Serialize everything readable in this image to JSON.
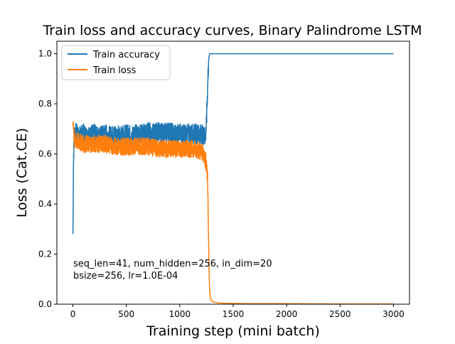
{
  "chart_data": {
    "type": "line",
    "title": "Train loss and accuracy curves, Binary Palindrome LSTM",
    "xlabel": "Training step (mini batch)",
    "ylabel": "Loss (Cat.CE)",
    "xlim": [
      -150,
      3150
    ],
    "ylim": [
      0,
      1.05
    ],
    "xticks": [
      "0",
      "500",
      "1000",
      "1500",
      "2000",
      "2500",
      "3000"
    ],
    "yticks": [
      "0.0",
      "0.2",
      "0.4",
      "0.6",
      "0.8",
      "1.0"
    ],
    "grid": false,
    "legend_position": "top-left",
    "annotation": [
      "seq_len=41, num_hidden=256, in_dim=20",
      "bsize=256, lr=1.0E-04"
    ],
    "series": [
      {
        "name": "Train accuracy",
        "color": "#1f77b4",
        "x": [
          0,
          2,
          5,
          10,
          20,
          50,
          100,
          150,
          200,
          250,
          300,
          350,
          400,
          450,
          500,
          550,
          600,
          650,
          700,
          750,
          800,
          850,
          900,
          950,
          1000,
          1050,
          1100,
          1150,
          1200,
          1240,
          1250,
          1255,
          1260,
          1265,
          1270,
          1275,
          1280,
          1290,
          1300,
          1350,
          1500,
          2000,
          2500,
          3000
        ],
        "y": [
          0.28,
          0.35,
          0.55,
          0.66,
          0.69,
          0.67,
          0.68,
          0.67,
          0.68,
          0.67,
          0.68,
          0.67,
          0.68,
          0.67,
          0.68,
          0.67,
          0.68,
          0.68,
          0.69,
          0.68,
          0.69,
          0.68,
          0.69,
          0.68,
          0.68,
          0.68,
          0.68,
          0.68,
          0.68,
          0.67,
          0.72,
          0.8,
          0.85,
          0.92,
          0.97,
          0.99,
          1.0,
          1.0,
          1.0,
          1.0,
          1.0,
          1.0,
          1.0,
          1.0
        ],
        "noise_amplitude": 0.04
      },
      {
        "name": "Train loss",
        "color": "#ff7f0e",
        "x": [
          0,
          10,
          20,
          50,
          100,
          200,
          300,
          400,
          500,
          600,
          700,
          800,
          900,
          1000,
          1100,
          1150,
          1200,
          1225,
          1250,
          1260,
          1265,
          1270,
          1275,
          1280,
          1290,
          1300,
          1320,
          1350,
          1400,
          1500,
          1700,
          2000,
          2500,
          3000
        ],
        "y": [
          0.73,
          0.67,
          0.65,
          0.65,
          0.64,
          0.64,
          0.64,
          0.63,
          0.63,
          0.63,
          0.63,
          0.62,
          0.62,
          0.62,
          0.62,
          0.62,
          0.61,
          0.6,
          0.56,
          0.5,
          0.4,
          0.25,
          0.12,
          0.05,
          0.02,
          0.012,
          0.008,
          0.006,
          0.004,
          0.003,
          0.002,
          0.002,
          0.001,
          0.001
        ],
        "noise_amplitude": 0.035
      }
    ]
  }
}
